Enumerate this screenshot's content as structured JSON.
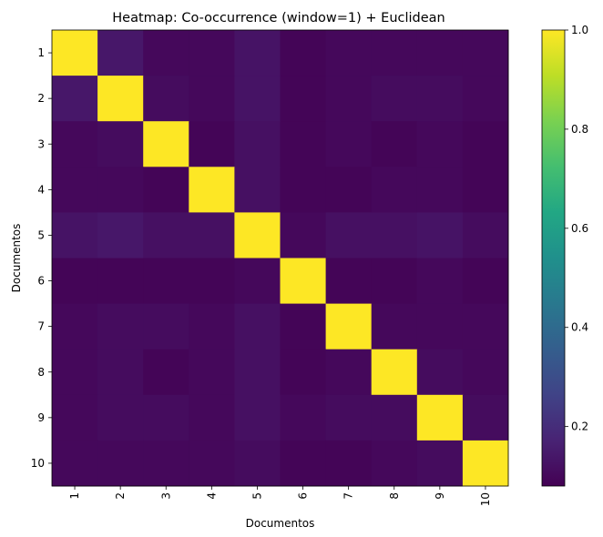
{
  "chart_data": {
    "type": "heatmap",
    "title": "Heatmap: Co-occurrence (window=1) + Euclidean",
    "xlabel": "Documentos",
    "ylabel": "Documentos",
    "x_categories": [
      "1",
      "2",
      "3",
      "4",
      "5",
      "6",
      "7",
      "8",
      "9",
      "10"
    ],
    "y_categories": [
      "1",
      "2",
      "3",
      "4",
      "5",
      "6",
      "7",
      "8",
      "9",
      "10"
    ],
    "values": [
      [
        1.0,
        0.14,
        0.1,
        0.1,
        0.13,
        0.09,
        0.1,
        0.1,
        0.1,
        0.1
      ],
      [
        0.14,
        1.0,
        0.11,
        0.1,
        0.13,
        0.09,
        0.1,
        0.11,
        0.11,
        0.1
      ],
      [
        0.1,
        0.11,
        1.0,
        0.09,
        0.12,
        0.09,
        0.1,
        0.09,
        0.1,
        0.09
      ],
      [
        0.1,
        0.1,
        0.09,
        1.0,
        0.12,
        0.09,
        0.09,
        0.1,
        0.1,
        0.09
      ],
      [
        0.13,
        0.14,
        0.12,
        0.12,
        1.0,
        0.1,
        0.12,
        0.12,
        0.13,
        0.11
      ],
      [
        0.09,
        0.09,
        0.09,
        0.09,
        0.1,
        1.0,
        0.09,
        0.09,
        0.1,
        0.09
      ],
      [
        0.1,
        0.11,
        0.11,
        0.1,
        0.12,
        0.09,
        1.0,
        0.1,
        0.1,
        0.1
      ],
      [
        0.1,
        0.11,
        0.09,
        0.1,
        0.12,
        0.09,
        0.1,
        1.0,
        0.11,
        0.1
      ],
      [
        0.1,
        0.11,
        0.11,
        0.1,
        0.12,
        0.1,
        0.11,
        0.11,
        1.0,
        0.11
      ],
      [
        0.1,
        0.1,
        0.1,
        0.1,
        0.11,
        0.09,
        0.09,
        0.1,
        0.11,
        1.0
      ]
    ],
    "colormap": "viridis",
    "vmin": 0.08,
    "vmax": 1.0,
    "colorbar_ticks": [
      "0.2",
      "0.4",
      "0.6",
      "0.8",
      "1.0"
    ],
    "colorbar_tick_values": [
      0.2,
      0.4,
      0.6,
      0.8,
      1.0
    ],
    "grid": false
  }
}
